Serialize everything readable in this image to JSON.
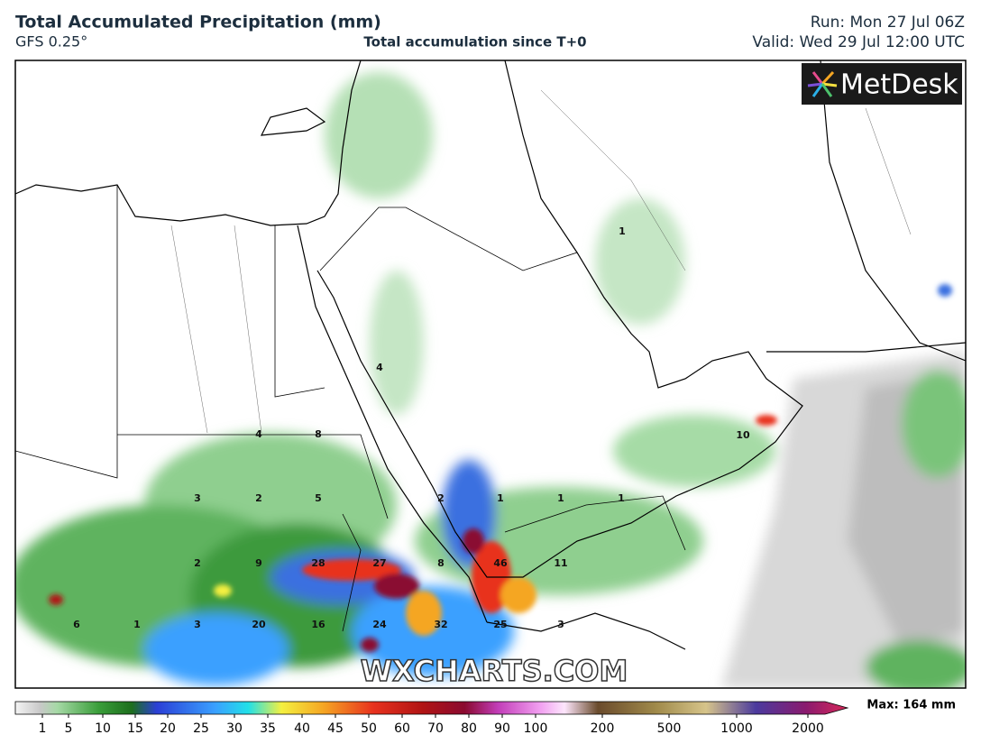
{
  "header": {
    "title": "Total Accumulated Precipitation (mm)",
    "model": "GFS 0.25°",
    "subtitle": "Total accumulation since T+0",
    "run": "Run: Mon 27 Jul 06Z",
    "valid": "Valid: Wed 29 Jul 12:00 UTC"
  },
  "logo": "MetDesk",
  "watermark": "WXCHARTS.COM",
  "map_labels": [
    1,
    4,
    10,
    4,
    8,
    3,
    2,
    5,
    2,
    1,
    1,
    1,
    2,
    9,
    28,
    27,
    8,
    46,
    11,
    6,
    1,
    3,
    20,
    16,
    24,
    32,
    25,
    3
  ],
  "colorbar": {
    "ticks": [
      1,
      5,
      10,
      15,
      20,
      25,
      30,
      35,
      40,
      45,
      50,
      60,
      70,
      80,
      90,
      100,
      200,
      500,
      1000,
      2000
    ],
    "max_label": "Max: 164 mm"
  }
}
